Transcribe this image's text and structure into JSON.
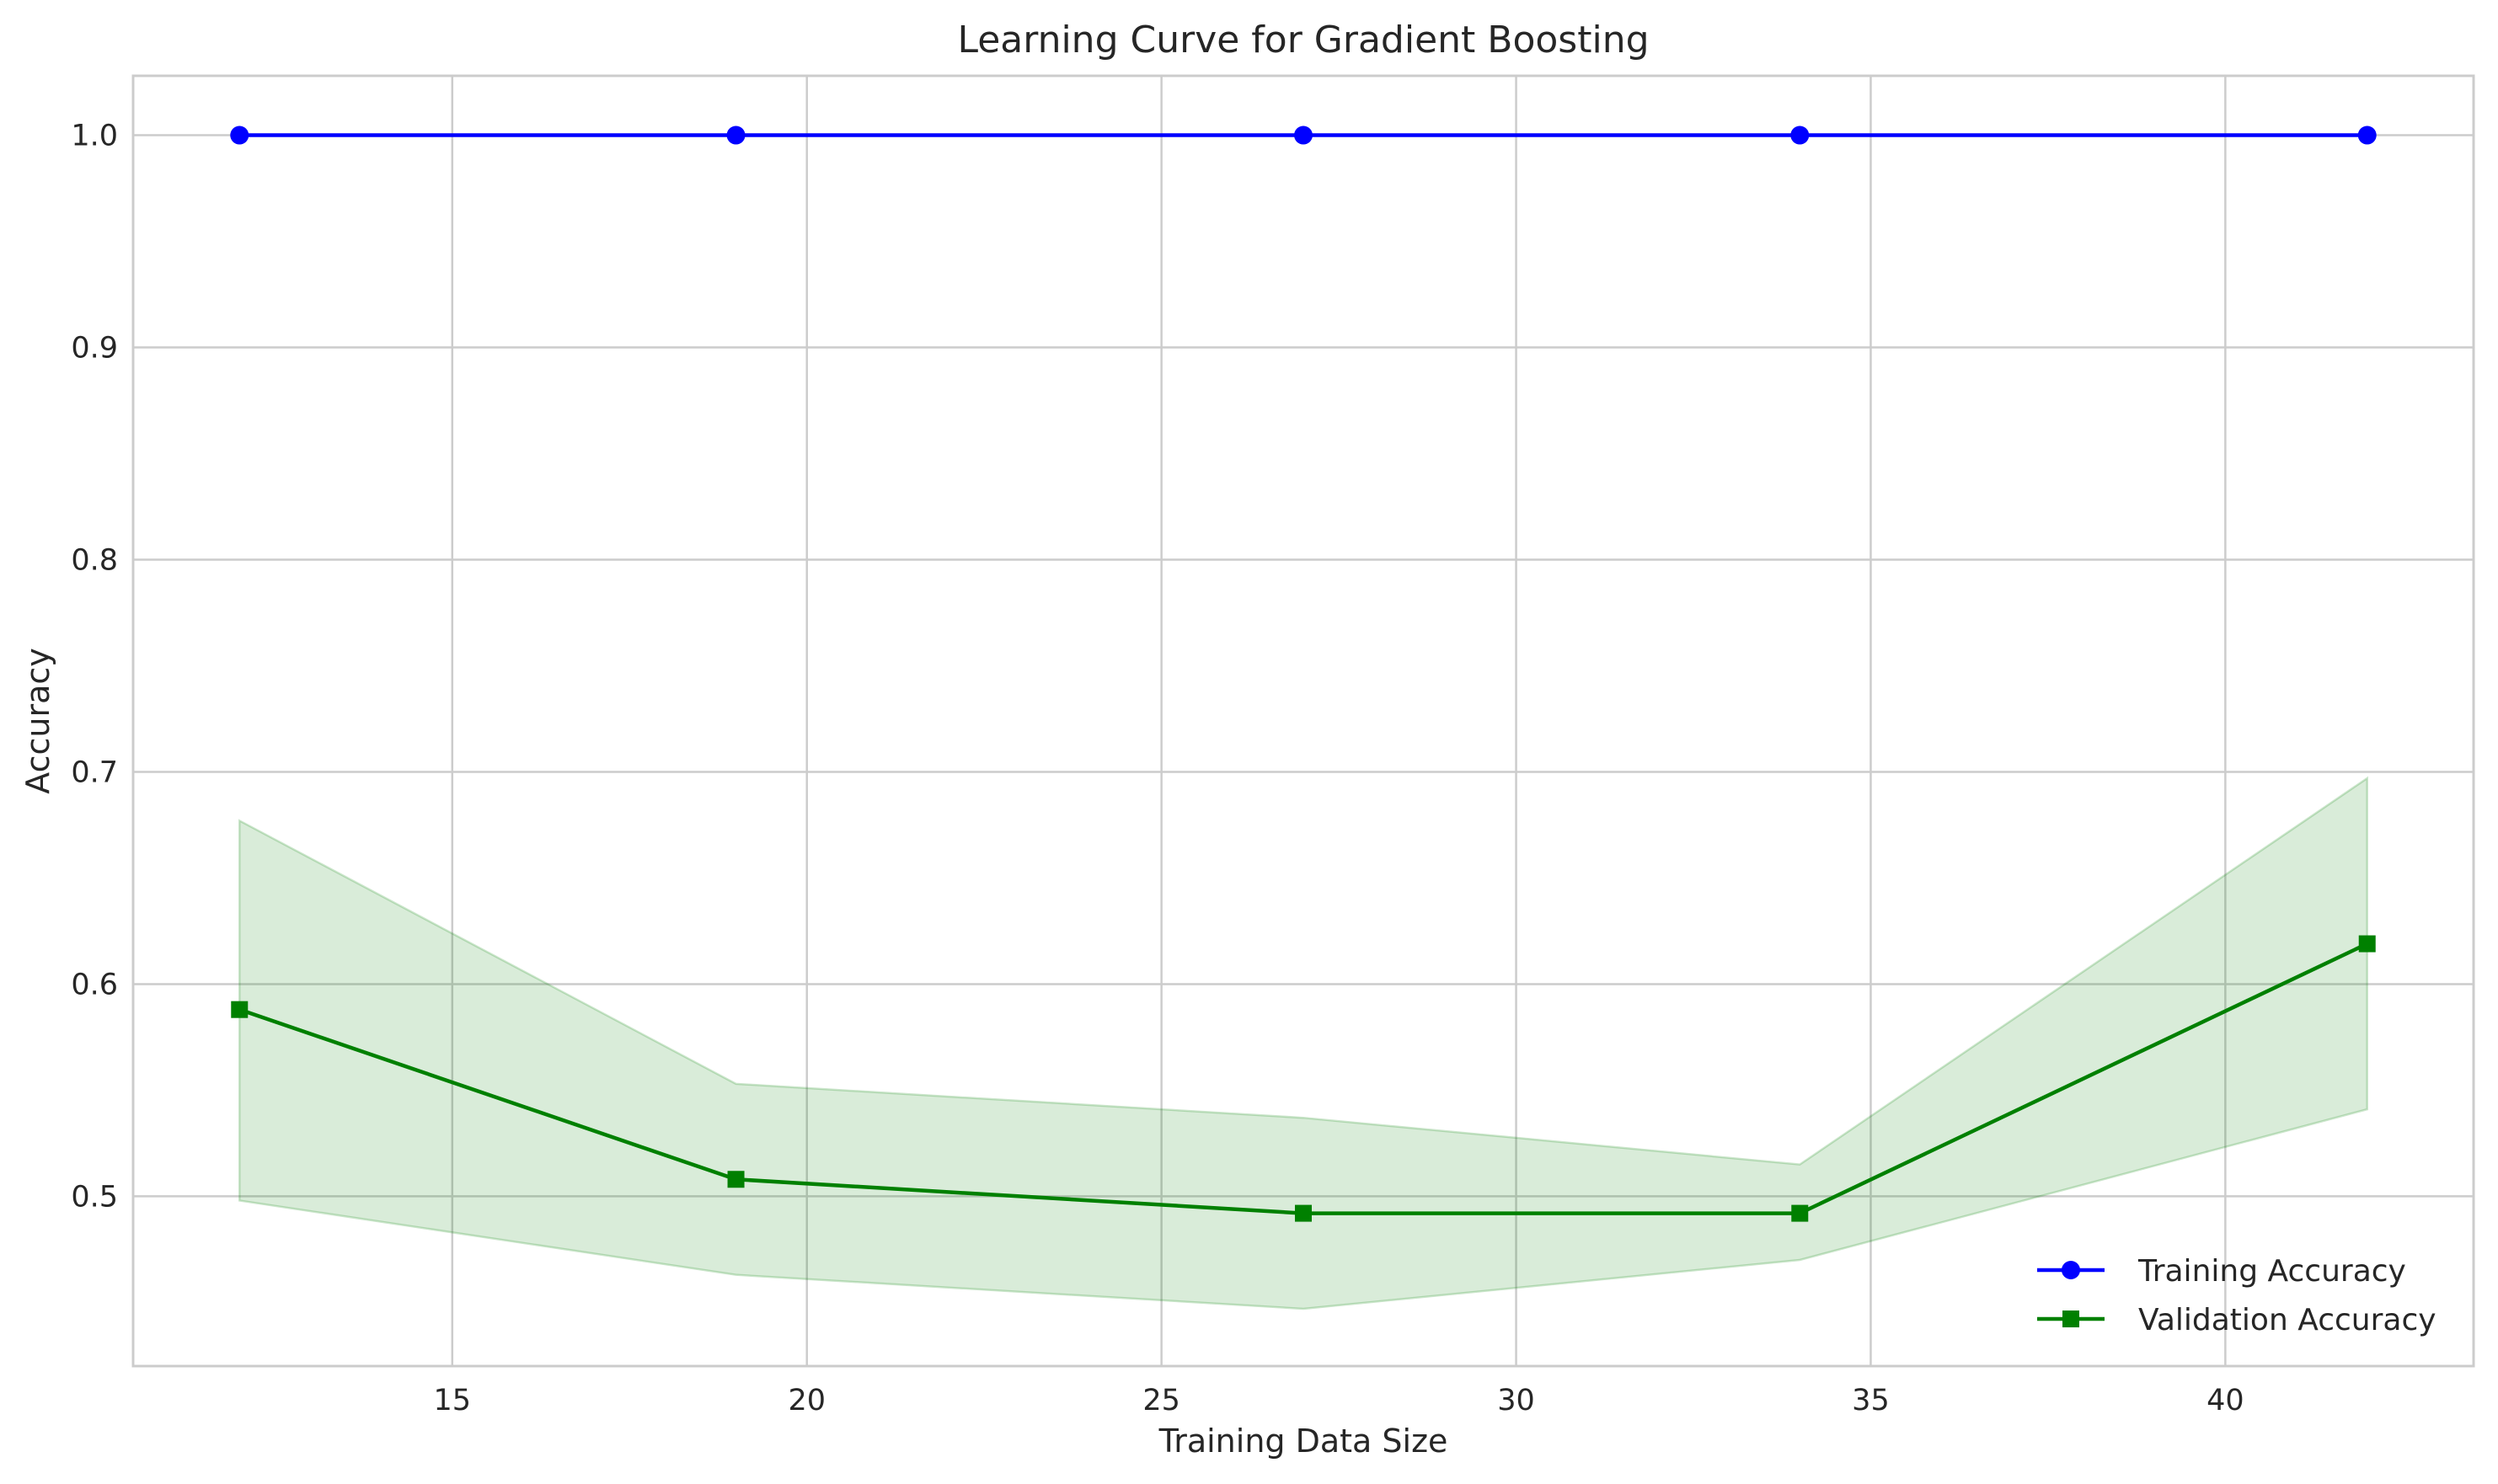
{
  "chart_data": {
    "type": "line",
    "title": "Learning Curve for Gradient Boosting",
    "xlabel": "Training Data Size",
    "ylabel": "Accuracy",
    "x": [
      12,
      19,
      27,
      34,
      42
    ],
    "xlim": [
      10.5,
      43.5
    ],
    "ylim": [
      0.42,
      1.028
    ],
    "xticks": [
      15,
      20,
      25,
      30,
      35,
      40
    ],
    "xtick_labels": [
      "15",
      "20",
      "25",
      "30",
      "35",
      "40"
    ],
    "yticks": [
      0.5,
      0.6,
      0.7,
      0.8,
      0.9,
      1.0
    ],
    "ytick_labels": [
      "0.5",
      "0.6",
      "0.7",
      "0.8",
      "0.9",
      "1.0"
    ],
    "grid": true,
    "legend_position": "lower-right",
    "series": [
      {
        "name": "Training Accuracy",
        "values": [
          1.0,
          1.0,
          1.0,
          1.0,
          1.0
        ],
        "color": "#0000ff",
        "marker": "circle"
      },
      {
        "name": "Validation Accuracy",
        "values": [
          0.588,
          0.508,
          0.492,
          0.492,
          0.619
        ],
        "color": "#008000",
        "marker": "square",
        "band_upper": [
          0.677,
          0.553,
          0.537,
          0.515,
          0.697
        ],
        "band_lower": [
          0.498,
          0.463,
          0.447,
          0.47,
          0.541
        ],
        "band_color": "#008000"
      }
    ]
  }
}
